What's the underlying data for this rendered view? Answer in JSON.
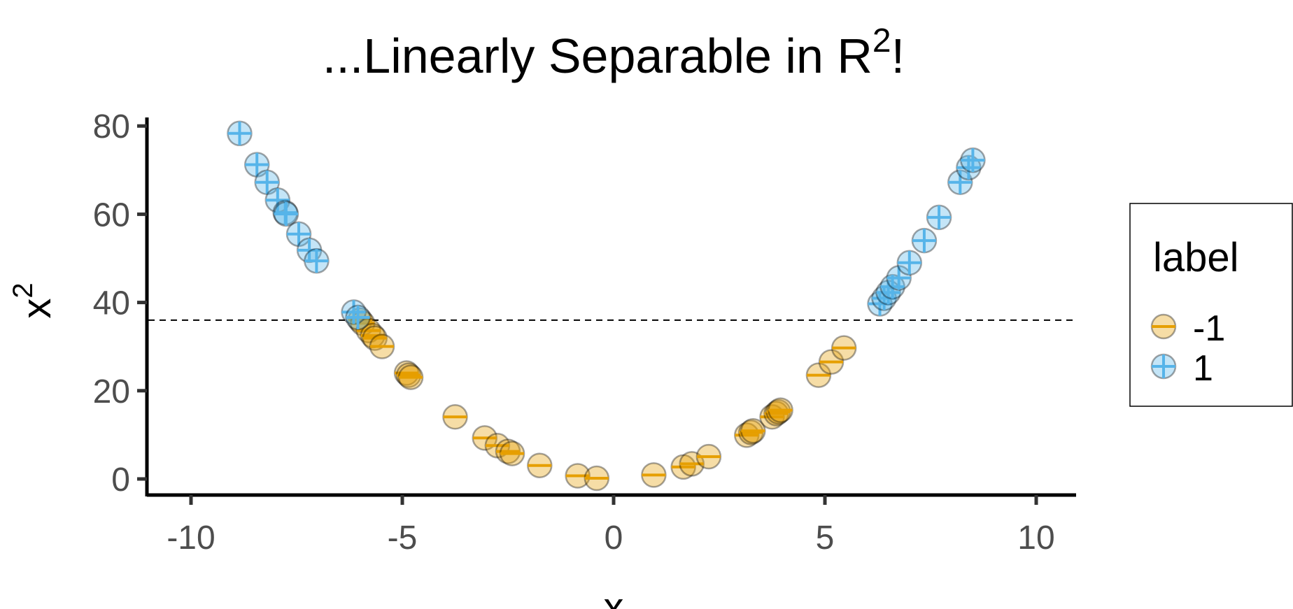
{
  "chart_data": {
    "type": "scatter",
    "title": "...Linearly Separable in R",
    "title_superscript": "2",
    "title_suffix": "!",
    "xlabel": "x",
    "ylabel": "x",
    "ylabel_superscript": "2",
    "xlim": [
      -11,
      11
    ],
    "ylim": [
      -4,
      82
    ],
    "x_ticks": [
      -10,
      -5,
      0,
      5,
      10
    ],
    "x_tick_labels": [
      "-10",
      "-5",
      "0",
      "5",
      "10"
    ],
    "y_ticks": [
      0,
      20,
      40,
      60,
      80
    ],
    "y_tick_labels": [
      "0",
      "20",
      "40",
      "60",
      "80"
    ],
    "grid": false,
    "reference_line": {
      "y": 36,
      "style": "dashed",
      "color": "#000000"
    },
    "legend": {
      "title": "label",
      "placement": "right"
    },
    "series": [
      {
        "name": "-1",
        "color": "#E69F00",
        "marker": "circle-with-minus",
        "x": [
          -6.0,
          -5.94,
          -5.8,
          -5.7,
          -5.65,
          -5.48,
          -4.9,
          -4.85,
          -4.8,
          -3.75,
          -3.05,
          -2.75,
          -2.5,
          -2.4,
          -1.75,
          -0.85,
          -0.4,
          0.95,
          1.65,
          1.85,
          2.25,
          3.15,
          3.25,
          3.3,
          3.75,
          3.85,
          3.9,
          3.95,
          4.85,
          5.15,
          5.45
        ],
        "y": [
          36.0,
          35.28,
          33.64,
          32.49,
          31.92,
          30.03,
          24.01,
          23.52,
          23.04,
          14.06,
          9.3,
          7.56,
          6.25,
          5.76,
          3.06,
          0.72,
          0.16,
          0.9,
          2.72,
          3.42,
          5.06,
          9.92,
          10.56,
          10.89,
          14.06,
          14.82,
          15.21,
          15.6,
          23.52,
          26.52,
          29.7
        ]
      },
      {
        "name": "1",
        "color": "#56B4E9",
        "marker": "circle-with-plus",
        "x": [
          -8.85,
          -8.44,
          -8.2,
          -7.95,
          -7.77,
          -7.75,
          -7.45,
          -7.2,
          -7.03,
          -6.15,
          -6.05,
          6.3,
          6.4,
          6.5,
          6.6,
          6.75,
          7.0,
          7.35,
          7.7,
          8.2,
          8.4,
          8.5
        ],
        "y": [
          78.32,
          71.23,
          67.24,
          63.2,
          60.37,
          60.06,
          55.5,
          51.84,
          49.42,
          37.82,
          36.6,
          39.69,
          40.96,
          42.25,
          43.56,
          45.56,
          49.0,
          54.02,
          59.29,
          67.24,
          70.56,
          72.25
        ]
      }
    ]
  }
}
